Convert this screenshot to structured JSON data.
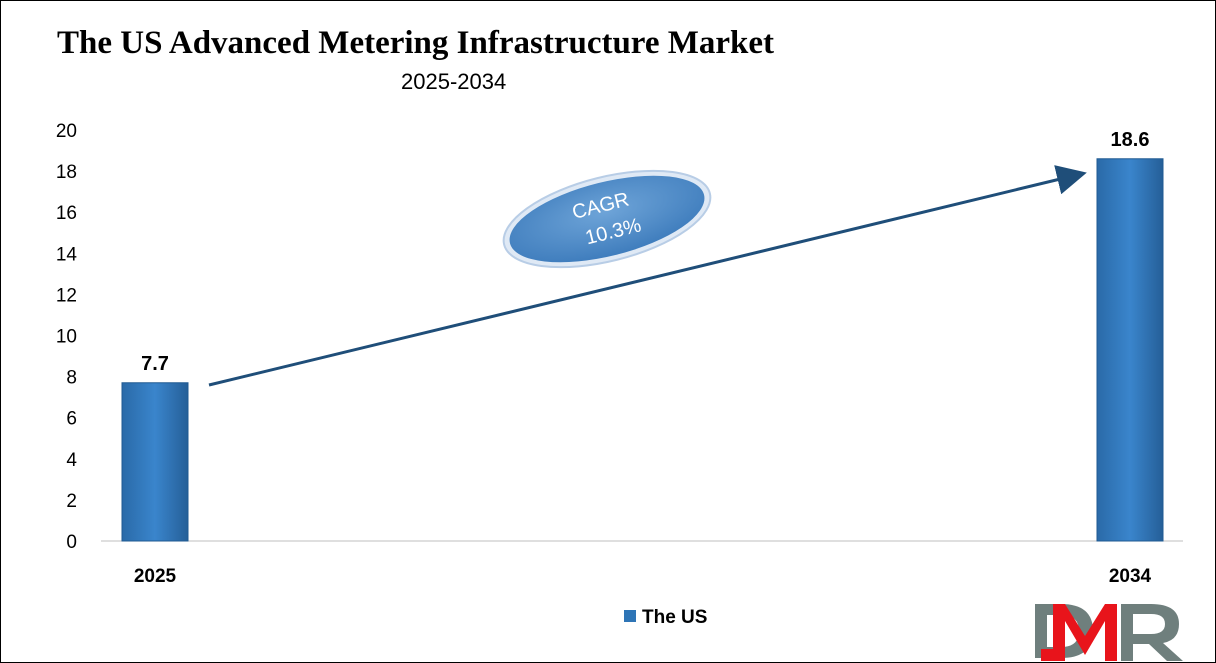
{
  "chart_data": {
    "type": "bar",
    "title": "The US Advanced Metering Infrastructure Market",
    "subtitle": "2025-2034",
    "categories": [
      "2025",
      "2034"
    ],
    "series": [
      {
        "name": "The US",
        "values": [
          7.7,
          18.6
        ],
        "color": "#2E75B6"
      }
    ],
    "data_labels": [
      "7.7",
      "18.6"
    ],
    "ylim": [
      0,
      20
    ],
    "yticks": [
      "0",
      "2",
      "4",
      "6",
      "8",
      "10",
      "12",
      "14",
      "16",
      "18",
      "20"
    ],
    "xlabel": "",
    "ylabel": "",
    "grid": false,
    "legend": {
      "position": "bottom",
      "label": "The US"
    },
    "annotation": {
      "line1": "CAGR",
      "line2": "10.3%"
    }
  },
  "logo": {
    "text": "DMR",
    "colors": [
      "#6F7F7D",
      "#E8141B"
    ]
  }
}
